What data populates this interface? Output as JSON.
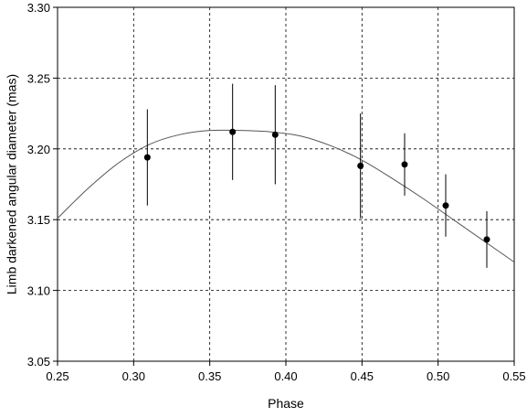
{
  "chart_data": {
    "type": "scatter",
    "title": "",
    "xlabel": "Phase",
    "ylabel": "Limb darkened angular diameter (mas)",
    "xlim": [
      0.25,
      0.55
    ],
    "ylim": [
      3.05,
      3.3
    ],
    "x_ticks": [
      "0.25",
      "0.30",
      "0.35",
      "0.40",
      "0.45",
      "0.50",
      "0.55"
    ],
    "y_ticks": [
      "3.05",
      "3.10",
      "3.15",
      "3.20",
      "3.25",
      "3.30"
    ],
    "grid": true,
    "legend": "none",
    "series": [
      {
        "kind": "points_with_errorbars",
        "points": [
          {
            "x": 0.309,
            "y": 3.194,
            "yerr": 0.034
          },
          {
            "x": 0.365,
            "y": 3.212,
            "yerr": 0.034
          },
          {
            "x": 0.393,
            "y": 3.21,
            "yerr": 0.035
          },
          {
            "x": 0.449,
            "y": 3.188,
            "yerr": 0.037
          },
          {
            "x": 0.478,
            "y": 3.189,
            "yerr": 0.022
          },
          {
            "x": 0.505,
            "y": 3.16,
            "yerr": 0.022
          },
          {
            "x": 0.532,
            "y": 3.136,
            "yerr": 0.02
          }
        ]
      },
      {
        "kind": "fit_curve",
        "x": [
          0.25,
          0.27,
          0.29,
          0.31,
          0.33,
          0.35,
          0.37,
          0.39,
          0.41,
          0.43,
          0.45,
          0.47,
          0.49,
          0.51,
          0.53,
          0.55
        ],
        "y": [
          3.151,
          3.172,
          3.19,
          3.203,
          3.21,
          3.213,
          3.213,
          3.212,
          3.209,
          3.202,
          3.192,
          3.179,
          3.165,
          3.15,
          3.135,
          3.12
        ]
      }
    ]
  }
}
